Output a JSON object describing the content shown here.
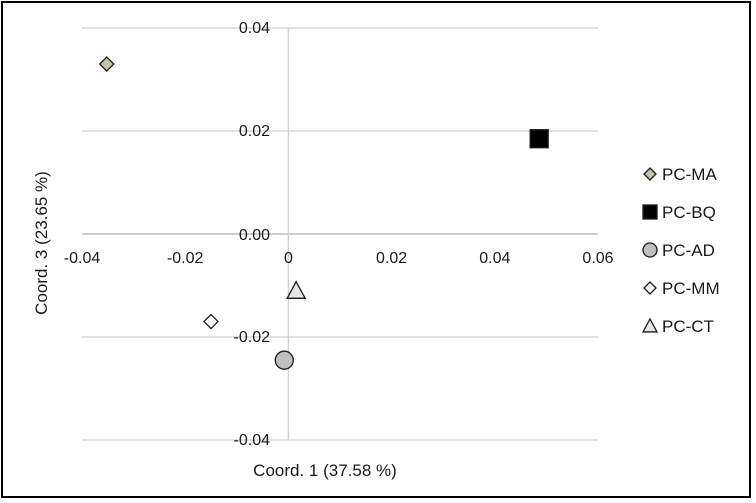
{
  "chart_data": {
    "type": "scatter",
    "title": "",
    "xlabel": "Coord. 1 (37.58 %)",
    "ylabel": "Coord. 3 (23.65 %)",
    "xlim": [
      -0.04,
      0.06
    ],
    "ylim": [
      -0.04,
      0.04
    ],
    "x_ticks": [
      "-0.04",
      "-0.02",
      "0",
      "0.02",
      "0.04",
      "0.06"
    ],
    "y_ticks": [
      "0.04",
      "0.02",
      "0.00",
      "-0.02",
      "-0.04"
    ],
    "grid": "horizontal",
    "legend_position": "right",
    "series": [
      {
        "name": "PC-MA",
        "marker": "diamond",
        "fill": "#c8c2a4",
        "points": [
          {
            "x": -0.0352,
            "y": 0.033
          }
        ]
      },
      {
        "name": "PC-BQ",
        "marker": "square",
        "fill": "#000000",
        "points": [
          {
            "x": 0.0486,
            "y": 0.0185
          }
        ]
      },
      {
        "name": "PC-AD",
        "marker": "circle",
        "fill": "#bfbfbf",
        "points": [
          {
            "x": -0.0008,
            "y": -0.0245
          }
        ]
      },
      {
        "name": "PC-MM",
        "marker": "diamond",
        "fill": "#ffffff",
        "points": [
          {
            "x": -0.015,
            "y": -0.017
          }
        ]
      },
      {
        "name": "PC-CT",
        "marker": "triangle",
        "fill": "#e6e6e6",
        "points": [
          {
            "x": 0.0015,
            "y": -0.011
          }
        ]
      }
    ]
  }
}
